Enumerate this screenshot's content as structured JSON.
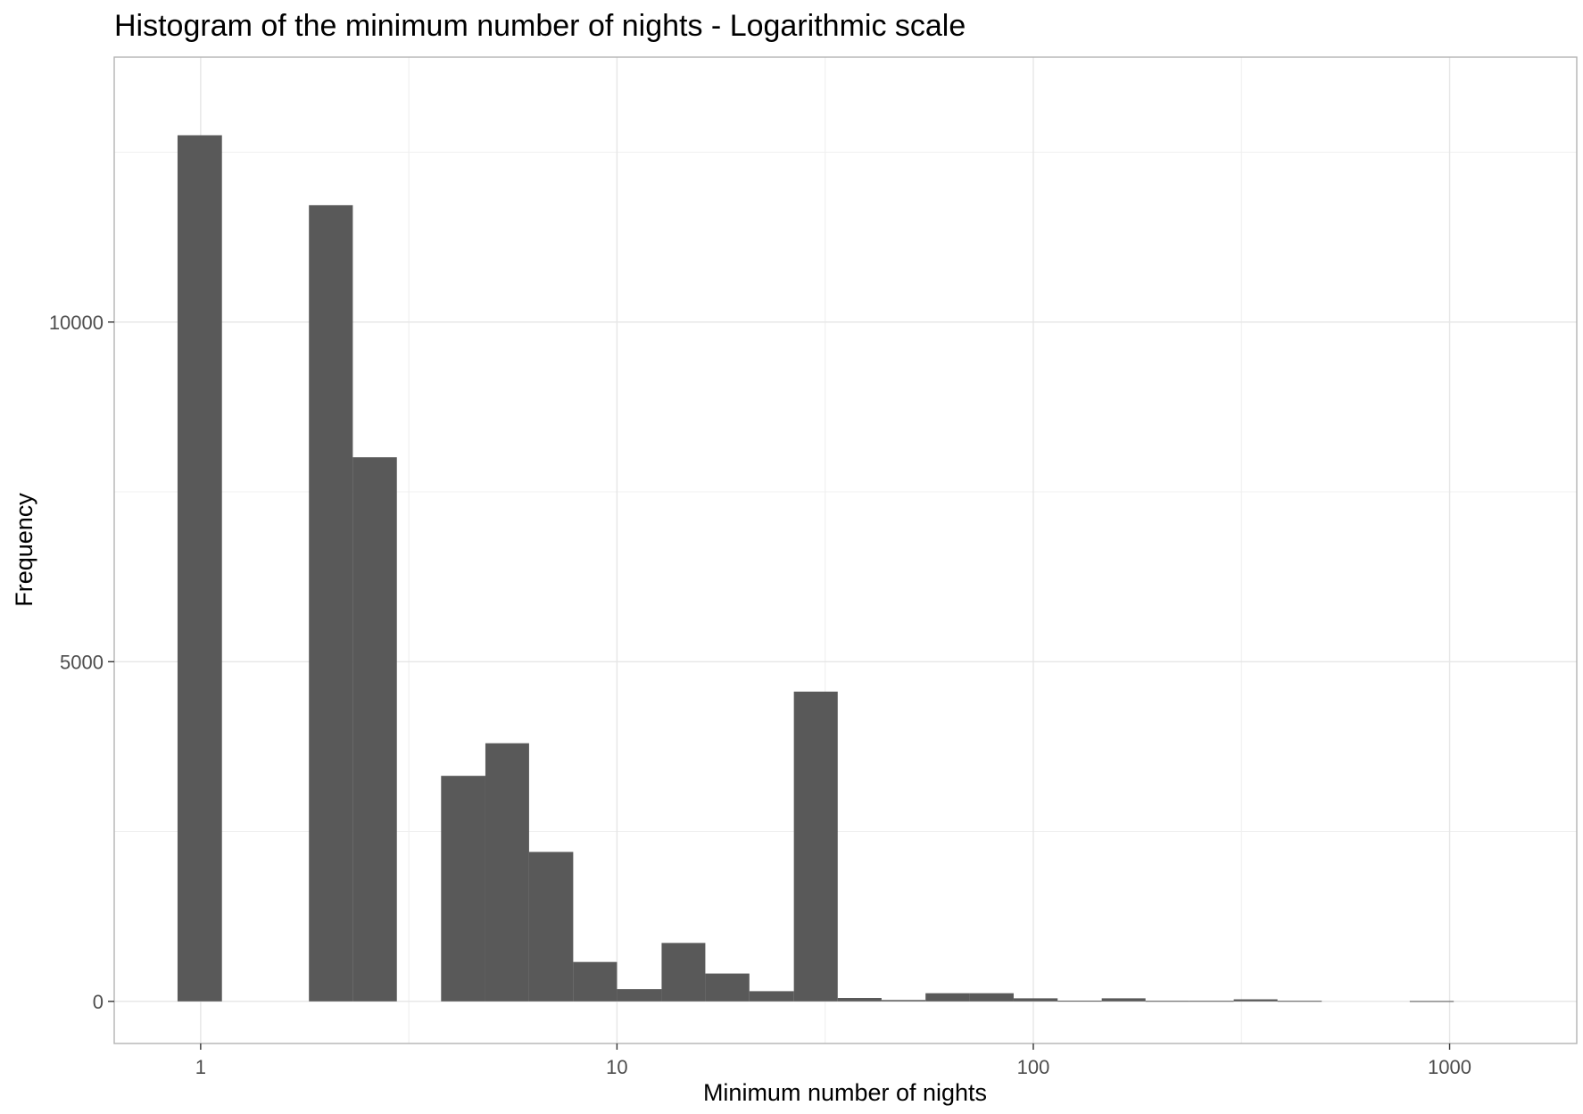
{
  "chart_data": {
    "type": "bar",
    "title": "Histogram of the minimum number of nights - Logarithmic scale",
    "xlabel": "Minimum number of nights",
    "ylabel": "Frequency",
    "x_scale": "log10",
    "x_ticks": [
      1,
      10,
      100,
      1000
    ],
    "x_tick_labels": [
      "1",
      "10",
      "100",
      "1000"
    ],
    "y_ticks": [
      0,
      5000,
      10000
    ],
    "y_tick_labels": [
      "0",
      "5000",
      "10000"
    ],
    "xlim": [
      0.62,
      2020
    ],
    "ylim": [
      -620,
      13900
    ],
    "grid": true,
    "bins": [
      {
        "x0": 0.88,
        "x1": 1.125,
        "count": 12750
      },
      {
        "x0": 1.82,
        "x1": 2.32,
        "count": 11720
      },
      {
        "x0": 2.32,
        "x1": 2.96,
        "count": 8010
      },
      {
        "x0": 3.78,
        "x1": 4.83,
        "count": 3320
      },
      {
        "x0": 4.83,
        "x1": 6.15,
        "count": 3800
      },
      {
        "x0": 6.15,
        "x1": 7.85,
        "count": 2200
      },
      {
        "x0": 7.85,
        "x1": 10.0,
        "count": 580
      },
      {
        "x0": 10.0,
        "x1": 12.8,
        "count": 180
      },
      {
        "x0": 12.8,
        "x1": 16.3,
        "count": 860
      },
      {
        "x0": 16.3,
        "x1": 20.8,
        "count": 410
      },
      {
        "x0": 20.8,
        "x1": 26.6,
        "count": 150
      },
      {
        "x0": 26.6,
        "x1": 33.9,
        "count": 4560
      },
      {
        "x0": 33.9,
        "x1": 43.2,
        "count": 50
      },
      {
        "x0": 43.2,
        "x1": 55.1,
        "count": 20
      },
      {
        "x0": 55.1,
        "x1": 70.3,
        "count": 120
      },
      {
        "x0": 70.3,
        "x1": 89.7,
        "count": 120
      },
      {
        "x0": 89.7,
        "x1": 114.4,
        "count": 45
      },
      {
        "x0": 114.4,
        "x1": 146.0,
        "count": 10
      },
      {
        "x0": 146.0,
        "x1": 186.0,
        "count": 45
      },
      {
        "x0": 186.0,
        "x1": 237.0,
        "count": 8
      },
      {
        "x0": 237.0,
        "x1": 303.0,
        "count": 8
      },
      {
        "x0": 303.0,
        "x1": 386.0,
        "count": 30
      },
      {
        "x0": 386.0,
        "x1": 493.0,
        "count": 8
      },
      {
        "x0": 802.0,
        "x1": 1023.0,
        "count": 5
      }
    ]
  }
}
